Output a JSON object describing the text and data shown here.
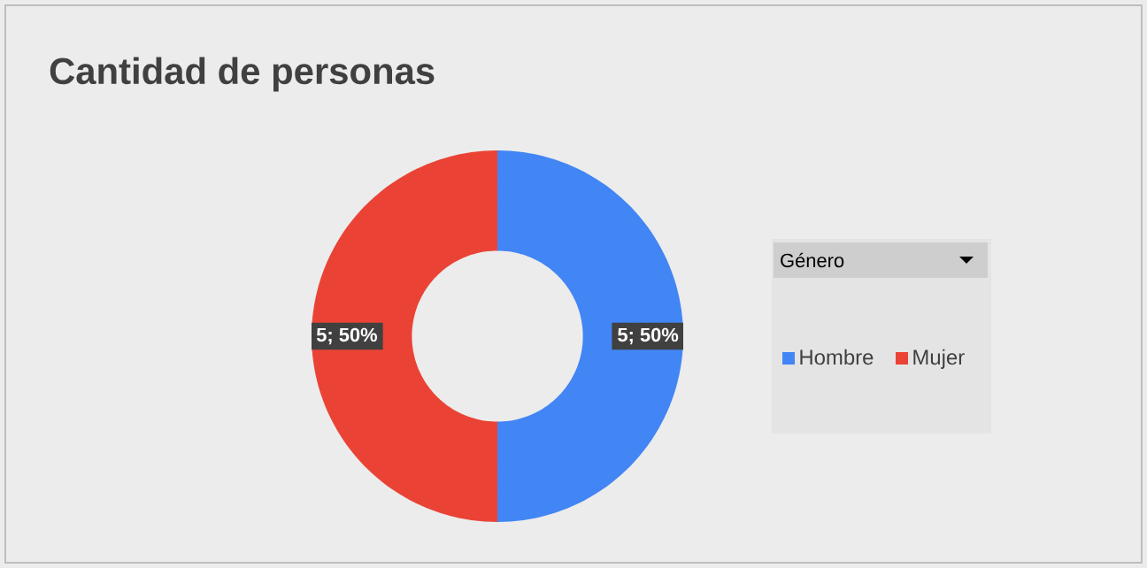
{
  "chart_data": {
    "type": "donut",
    "title": "Cantidad de personas",
    "legend_title": "Género",
    "categories": [
      "Hombre",
      "Mujer"
    ],
    "values": [
      5,
      5
    ],
    "colors": [
      "#4285f4",
      "#ea4335"
    ],
    "value_labels": [
      "5; 50%",
      "5; 50%"
    ],
    "legend": "right"
  }
}
